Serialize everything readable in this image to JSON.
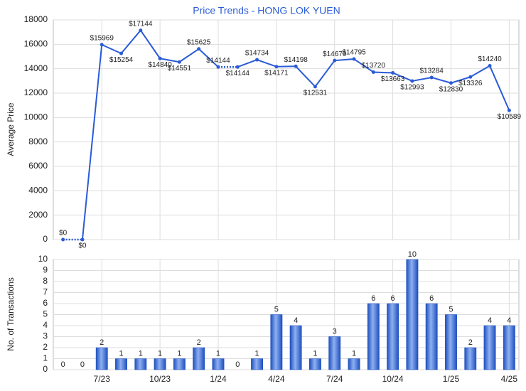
{
  "chart_data": [
    {
      "type": "line",
      "title": "Price Trends - HONG LOK YUEN",
      "ylabel": "Average Price",
      "color": "#2a5bd7",
      "values": [
        0,
        0,
        15969,
        15254,
        17144,
        14840,
        14551,
        15625,
        14144,
        14144,
        14734,
        14171,
        14198,
        12531,
        14670,
        14795,
        13720,
        13663,
        12993,
        13284,
        12830,
        13326,
        14240,
        10589
      ],
      "value_labels": [
        "$0",
        "$0",
        "$15969",
        "$15254",
        "$17144",
        "$14840",
        "$14551",
        "$15625",
        "$14144",
        "$14144",
        "$14734",
        "$14171",
        "$14198",
        "$12531",
        "$14670",
        "$14795",
        "$13720",
        "$13663",
        "$12993",
        "$13284",
        "$12830",
        "$13326",
        "$14240",
        "$10589"
      ],
      "ylim": [
        0,
        18000
      ],
      "yticks": [
        0,
        2000,
        4000,
        6000,
        8000,
        10000,
        12000,
        14000,
        16000,
        18000
      ],
      "grid": true
    },
    {
      "type": "bar",
      "ylabel": "No. of Transactions",
      "color": "#3a6fd8",
      "categories": [
        null,
        null,
        "7/23",
        null,
        null,
        "10/23",
        null,
        null,
        "1/24",
        null,
        null,
        "4/24",
        null,
        null,
        "7/24",
        null,
        null,
        "10/24",
        null,
        null,
        "1/25",
        null,
        null,
        "4/25"
      ],
      "values": [
        0,
        0,
        2,
        1,
        1,
        1,
        1,
        2,
        1,
        0,
        1,
        5,
        4,
        1,
        3,
        1,
        6,
        6,
        10,
        6,
        5,
        2,
        4,
        4
      ],
      "ylim": [
        0,
        10
      ],
      "yticks": [
        0,
        1,
        2,
        3,
        4,
        5,
        6,
        7,
        8,
        9,
        10
      ],
      "grid": true
    }
  ]
}
